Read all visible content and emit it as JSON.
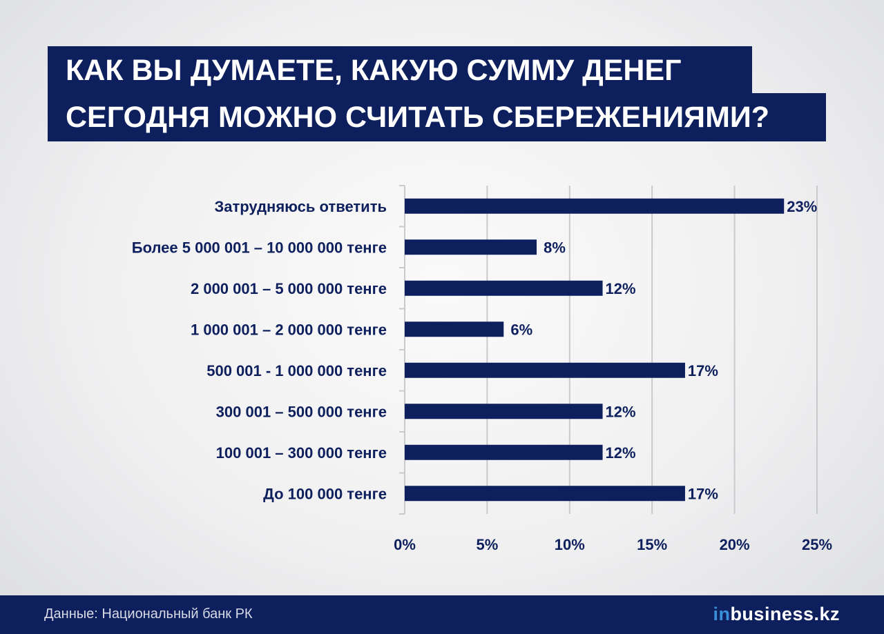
{
  "title": {
    "line1": "КАК ВЫ ДУМАЕТЕ, КАКУЮ СУММУ ДЕНЕГ",
    "line2": "СЕГОДНЯ МОЖНО СЧИТАТЬ СБЕРЕЖЕНИЯМИ?"
  },
  "footer": {
    "source": "Данные: Национальный банк РК",
    "logo_prefix": "in",
    "logo_rest": "business.kz"
  },
  "colors": {
    "bar": "#0d1f5c",
    "grid": "#c9cacd",
    "banner": "#0d1f5c",
    "logo_accent": "#3a8fd9"
  },
  "chart_data": {
    "type": "bar",
    "orientation": "horizontal",
    "categories": [
      "Затрудняюсь ответить",
      "Более 5 000 001 – 10 000 000 тенге",
      "2 000 001 – 5 000 000 тенге",
      "1 000 001 – 2 000 000 тенге",
      "500 001  - 1 000 000 тенге",
      "300 001 – 500 000 тенге",
      "100 001 – 300 000 тенге",
      "До 100 000 тенге"
    ],
    "values": [
      23,
      8,
      12,
      6,
      17,
      12,
      12,
      17
    ],
    "value_labels": [
      "23%",
      "8%",
      "12%",
      "6%",
      "17%",
      "12%",
      "12%",
      "17%"
    ],
    "xlim": [
      0,
      25
    ],
    "xticks": [
      0,
      5,
      10,
      15,
      20,
      25
    ],
    "xtick_labels": [
      "0%",
      "5%",
      "10%",
      "15%",
      "20%",
      "25%"
    ],
    "grid": true,
    "legend": "none"
  }
}
